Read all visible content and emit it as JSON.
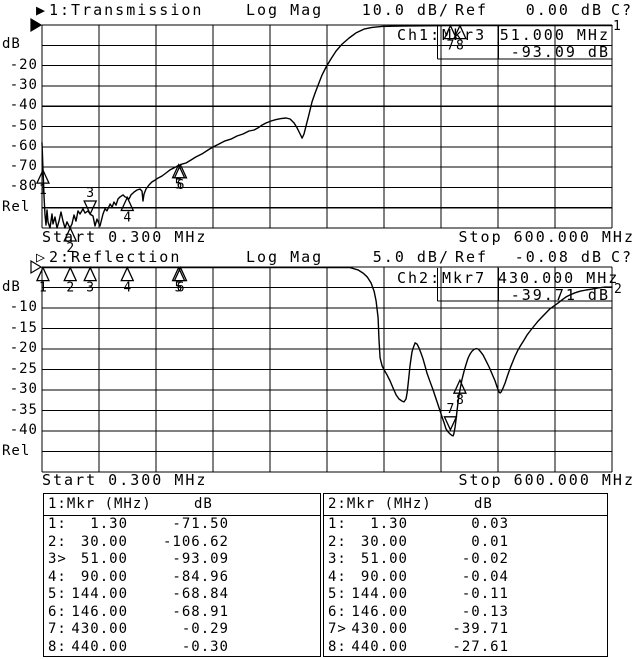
{
  "chart_data": [
    {
      "type": "line",
      "indicator": "▶",
      "title": "1:Transmission",
      "format": "Log Mag",
      "scale_label": "10.0 dB/",
      "ref_label": "Ref",
      "ref_value": "0.00 dB",
      "cal_label": "C?",
      "active": true,
      "trace_number": "1",
      "readout": {
        "channel": "Ch1:",
        "marker": "Mkr3",
        "freq": "51.000 MHz",
        "value": "-93.09 dB"
      },
      "y_axis": {
        "unit": "dB",
        "rel_label": "Rel",
        "tick_labels": [
          "-20",
          "-30",
          "-40",
          "-50",
          "-60",
          "-70",
          "-80"
        ]
      },
      "x_axis": {
        "start_label": "Start 0.300 MHz",
        "stop_label": "Stop 600.000 MHz",
        "f_start": 0.3,
        "f_stop": 600
      },
      "db_per_div": 10,
      "ylim": [
        0,
        -100
      ],
      "markers": [
        {
          "n": "1",
          "f": 1.3,
          "db": -71.5,
          "style": "up"
        },
        {
          "n": "2",
          "f": 30,
          "db": -106.62,
          "style": "up"
        },
        {
          "n": "3",
          "f": 51,
          "db": -93.09,
          "style": "down"
        },
        {
          "n": "4",
          "f": 90,
          "db": -84.96,
          "style": "up"
        },
        {
          "n": "5",
          "f": 144,
          "db": -68.84,
          "style": "up"
        },
        {
          "n": "6",
          "f": 146,
          "db": -68.91,
          "style": "up"
        },
        {
          "n": "7",
          "f": 430,
          "db": -0.29,
          "style": "up"
        },
        {
          "n": "8",
          "f": 440,
          "db": -0.3,
          "style": "up"
        }
      ],
      "series": [
        {
          "name": "Transmission",
          "points": [
            [
              0.3,
              -58
            ],
            [
              0.8,
              -64.5
            ],
            [
              1.3,
              -71.5
            ],
            [
              1.9,
              -77
            ],
            [
              2.4,
              -84.2
            ],
            [
              3.5,
              -93.6
            ],
            [
              4.5,
              -98.5
            ],
            [
              5.6,
              -91.1
            ],
            [
              6.6,
              -97
            ],
            [
              8.7,
              -100
            ],
            [
              10.8,
              -93.1
            ],
            [
              11.9,
              -98
            ],
            [
              14,
              -94.6
            ],
            [
              16.1,
              -100
            ],
            [
              18.2,
              -96.6
            ],
            [
              20.3,
              -92.1
            ],
            [
              22.4,
              -96.6
            ],
            [
              24.5,
              -100
            ],
            [
              26.6,
              -97
            ],
            [
              29.8,
              -100
            ],
            [
              31.9,
              -98
            ],
            [
              34,
              -93.6
            ],
            [
              36.1,
              -96.6
            ],
            [
              38.2,
              -91.6
            ],
            [
              40.3,
              -93.1
            ],
            [
              43.4,
              -90.6
            ],
            [
              45.5,
              -92.6
            ],
            [
              48.7,
              -91.6
            ],
            [
              50.8,
              -93.1
            ],
            [
              54,
              -94.1
            ],
            [
              56.1,
              -99
            ],
            [
              58.2,
              -95.6
            ],
            [
              61.3,
              -99
            ],
            [
              64.5,
              -93.1
            ],
            [
              66.6,
              -90.6
            ],
            [
              68.7,
              -91.6
            ],
            [
              71.9,
              -88.2
            ],
            [
              74,
              -89.7
            ],
            [
              76.1,
              -87.2
            ],
            [
              78.2,
              -88.7
            ],
            [
              80.3,
              -85.7
            ],
            [
              82.4,
              -84.7
            ],
            [
              85.5,
              -83.7
            ],
            [
              87.6,
              -84.7
            ],
            [
              89.7,
              -85
            ],
            [
              91.8,
              -85.7
            ],
            [
              93.9,
              -83.7
            ],
            [
              97.1,
              -82.3
            ],
            [
              100.3,
              -81.3
            ],
            [
              103.4,
              -80.8
            ],
            [
              105.5,
              -81.8
            ],
            [
              106.6,
              -86.7
            ],
            [
              107.6,
              -83.3
            ],
            [
              109.7,
              -80.8
            ],
            [
              112.9,
              -78.8
            ],
            [
              116,
              -77.3
            ],
            [
              119.2,
              -76.4
            ],
            [
              122.3,
              -75.4
            ],
            [
              126.6,
              -74.4
            ],
            [
              130.8,
              -72.9
            ],
            [
              135,
              -71.4
            ],
            [
              139.2,
              -70.4
            ],
            [
              143.4,
              -69.3
            ],
            [
              147.6,
              -68.5
            ],
            [
              151.8,
              -68
            ],
            [
              157.1,
              -66.5
            ],
            [
              162.3,
              -65
            ],
            [
              168.6,
              -63.5
            ],
            [
              175,
              -61.6
            ],
            [
              180.2,
              -60.1
            ],
            [
              186.5,
              -58.6
            ],
            [
              192.8,
              -57.1
            ],
            [
              199.2,
              -56.2
            ],
            [
              205.5,
              -54.7
            ],
            [
              211.8,
              -53.7
            ],
            [
              218.1,
              -52.2
            ],
            [
              223.4,
              -51.7
            ],
            [
              227.6,
              -50.7
            ],
            [
              231.8,
              -49.3
            ],
            [
              236,
              -48.3
            ],
            [
              241.3,
              -47.3
            ],
            [
              246.5,
              -46.6
            ],
            [
              251.8,
              -46.1
            ],
            [
              257.1,
              -45.8
            ],
            [
              261.3,
              -46.3
            ],
            [
              265.5,
              -48.3
            ],
            [
              268.7,
              -50.7
            ],
            [
              271.8,
              -53.7
            ],
            [
              273.9,
              -55.7
            ],
            [
              276,
              -53.7
            ],
            [
              278.1,
              -49.8
            ],
            [
              281.3,
              -43.8
            ],
            [
              284.4,
              -37.9
            ],
            [
              287.6,
              -33.5
            ],
            [
              290.8,
              -29.6
            ],
            [
              295,
              -24.6
            ],
            [
              299.2,
              -20.7
            ],
            [
              304.4,
              -16.7
            ],
            [
              309.7,
              -12.8
            ],
            [
              316,
              -9.4
            ],
            [
              323.4,
              -6.4
            ],
            [
              330.7,
              -3.9
            ],
            [
              339.1,
              -2
            ],
            [
              347.5,
              -1.2
            ],
            [
              358,
              -0.7
            ],
            [
              377,
              -0.5
            ],
            [
              429.6,
              -0.3
            ],
            [
              600,
              -0.3
            ]
          ]
        }
      ]
    },
    {
      "type": "line",
      "indicator": "▷",
      "title": "2:Reflection",
      "format": "Log Mag",
      "scale_label": "5.0 dB/",
      "ref_label": "Ref",
      "ref_value": "-0.08 dB",
      "cal_label": "C?",
      "active": false,
      "trace_number": "2",
      "readout": {
        "channel": "Ch2:",
        "marker": "Mkr7",
        "freq": "430.000 MHz",
        "value": "-39.71 dB"
      },
      "y_axis": {
        "unit": "dB",
        "rel_label": "Rel",
        "tick_labels": [
          "-10",
          "-15",
          "-20",
          "-25",
          "-30",
          "-35",
          "-40"
        ]
      },
      "x_axis": {
        "start_label": "Start 0.300 MHz",
        "stop_label": "Stop 600.000 MHz",
        "f_start": 0.3,
        "f_stop": 600
      },
      "db_per_div": 5,
      "ylim": [
        0,
        -50
      ],
      "markers": [
        {
          "n": "1",
          "f": 1.3,
          "db": 0.03,
          "style": "up"
        },
        {
          "n": "2",
          "f": 30,
          "db": 0.01,
          "style": "up"
        },
        {
          "n": "3",
          "f": 51,
          "db": -0.02,
          "style": "up"
        },
        {
          "n": "4",
          "f": 90,
          "db": -0.04,
          "style": "up"
        },
        {
          "n": "5",
          "f": 144,
          "db": -0.11,
          "style": "up"
        },
        {
          "n": "6",
          "f": 146,
          "db": -0.13,
          "style": "up"
        },
        {
          "n": "7",
          "f": 430,
          "db": -39.71,
          "style": "down"
        },
        {
          "n": "8",
          "f": 440,
          "db": -27.61,
          "style": "up"
        }
      ],
      "series": [
        {
          "name": "Reflection",
          "points": [
            [
              0.3,
              -0.1
            ],
            [
              324.4,
              -0.1
            ],
            [
              332.8,
              -0.7
            ],
            [
              338.1,
              -1.5
            ],
            [
              342.3,
              -2.4
            ],
            [
              346.5,
              -3.9
            ],
            [
              349.7,
              -5.9
            ],
            [
              351.8,
              -8.3
            ],
            [
              353.9,
              -12.4
            ],
            [
              354.9,
              -17.8
            ],
            [
              356,
              -22.2
            ],
            [
              358.1,
              -24.1
            ],
            [
              360.2,
              -25.1
            ],
            [
              363.3,
              -26.3
            ],
            [
              366.5,
              -27.8
            ],
            [
              369.6,
              -29.5
            ],
            [
              372.8,
              -31.2
            ],
            [
              375.9,
              -32.2
            ],
            [
              379.1,
              -32.7
            ],
            [
              381.2,
              -32.9
            ],
            [
              383.3,
              -32.2
            ],
            [
              384.4,
              -30.7
            ],
            [
              385.4,
              -28.8
            ],
            [
              386.5,
              -26.3
            ],
            [
              387.5,
              -24.1
            ],
            [
              388.6,
              -22.2
            ],
            [
              389.6,
              -20.7
            ],
            [
              390.7,
              -19.8
            ],
            [
              392.8,
              -18.5
            ],
            [
              394.9,
              -18.8
            ],
            [
              397,
              -19.8
            ],
            [
              399.1,
              -21
            ],
            [
              401.2,
              -22.4
            ],
            [
              403.3,
              -24.1
            ],
            [
              405.4,
              -25.9
            ],
            [
              408.6,
              -28
            ],
            [
              411.8,
              -30
            ],
            [
              414.9,
              -32.2
            ],
            [
              418.1,
              -34.4
            ],
            [
              421.2,
              -36.6
            ],
            [
              423.3,
              -38
            ],
            [
              425.4,
              -39.5
            ],
            [
              427.5,
              -40.2
            ],
            [
              429.6,
              -40.7
            ],
            [
              431.7,
              -41.1
            ],
            [
              432.8,
              -41.2
            ],
            [
              433.8,
              -40.5
            ],
            [
              434.9,
              -39
            ],
            [
              436,
              -37.1
            ],
            [
              437,
              -34.9
            ],
            [
              438.1,
              -32.9
            ],
            [
              439.1,
              -31.2
            ],
            [
              440.2,
              -29.8
            ],
            [
              442.3,
              -27.3
            ],
            [
              444.4,
              -25.4
            ],
            [
              446.5,
              -23.7
            ],
            [
              448.6,
              -22.2
            ],
            [
              450.7,
              -21.2
            ],
            [
              452.8,
              -20.5
            ],
            [
              454.9,
              -20.1
            ],
            [
              457,
              -19.9
            ],
            [
              459.1,
              -20
            ],
            [
              461.2,
              -20.5
            ],
            [
              464.4,
              -21.5
            ],
            [
              467.5,
              -22.9
            ],
            [
              470.7,
              -24.4
            ],
            [
              473.9,
              -26.1
            ],
            [
              477,
              -27.8
            ],
            [
              479.1,
              -29.3
            ],
            [
              481.2,
              -30.5
            ],
            [
              482.3,
              -30.7
            ],
            [
              483.3,
              -30.5
            ],
            [
              485.4,
              -29.5
            ],
            [
              487.5,
              -28.3
            ],
            [
              489.6,
              -26.8
            ],
            [
              491.7,
              -25.4
            ],
            [
              493.8,
              -24.1
            ],
            [
              495.9,
              -22.9
            ],
            [
              498,
              -21.7
            ],
            [
              501.2,
              -20.2
            ],
            [
              504.3,
              -19
            ],
            [
              507.5,
              -17.8
            ],
            [
              510.6,
              -16.6
            ],
            [
              513.8,
              -15.6
            ],
            [
              518,
              -14.4
            ],
            [
              522.2,
              -13.2
            ],
            [
              526.4,
              -12.2
            ],
            [
              530.6,
              -11.2
            ],
            [
              534.8,
              -10.2
            ],
            [
              539,
              -9.5
            ],
            [
              543.2,
              -8.8
            ],
            [
              547.5,
              -8
            ],
            [
              551.7,
              -7.3
            ],
            [
              555.9,
              -6.8
            ],
            [
              561.1,
              -6.3
            ],
            [
              566.4,
              -5.9
            ],
            [
              572.7,
              -5.6
            ],
            [
              579,
              -5.4
            ],
            [
              585.3,
              -5.1
            ],
            [
              592.7,
              -4.9
            ],
            [
              600,
              -4.9
            ]
          ]
        }
      ]
    }
  ],
  "tables": [
    {
      "title": "1:Mkr (MHz)",
      "unit": "dB",
      "rows": [
        [
          "1:",
          "1.30",
          "-71.50"
        ],
        [
          "2:",
          "30.00",
          "-106.62"
        ],
        [
          "3>",
          "51.00",
          "-93.09"
        ],
        [
          "4:",
          "90.00",
          "-84.96"
        ],
        [
          "5:",
          "144.00",
          "-68.84"
        ],
        [
          "6:",
          "146.00",
          "-68.91"
        ],
        [
          "7:",
          "430.00",
          "-0.29"
        ],
        [
          "8:",
          "440.00",
          "-0.30"
        ]
      ]
    },
    {
      "title": "2:Mkr (MHz)",
      "unit": "dB",
      "rows": [
        [
          "1:",
          "1.30",
          "0.03"
        ],
        [
          "2:",
          "30.00",
          "0.01"
        ],
        [
          "3:",
          "51.00",
          "-0.02"
        ],
        [
          "4:",
          "90.00",
          "-0.04"
        ],
        [
          "5:",
          "144.00",
          "-0.11"
        ],
        [
          "6:",
          "146.00",
          "-0.13"
        ],
        [
          "7>",
          "430.00",
          "-39.71"
        ],
        [
          "8:",
          "440.00",
          "-27.61"
        ]
      ]
    }
  ],
  "colors": {
    "foreground": "#000000",
    "background": "#ffffff"
  }
}
